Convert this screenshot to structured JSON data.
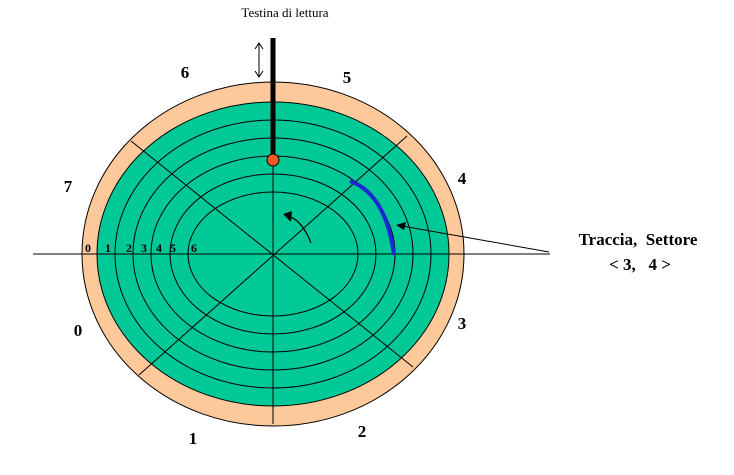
{
  "head_label": "Testina di lettura",
  "sector_labels": [
    "0",
    "1",
    "2",
    "3",
    "4",
    "5",
    "6",
    "7"
  ],
  "track_labels": [
    "0",
    "1",
    "2",
    "3",
    "4",
    "5",
    "6"
  ],
  "callout": {
    "line1": "Traccia,  Settore",
    "line2": "< 3,   4 >"
  },
  "colors": {
    "platter": "#00c896",
    "rim": "#fdc99a",
    "highlight": "#1e28d2",
    "head_tip": "#f05a28",
    "lines": "#000000"
  }
}
